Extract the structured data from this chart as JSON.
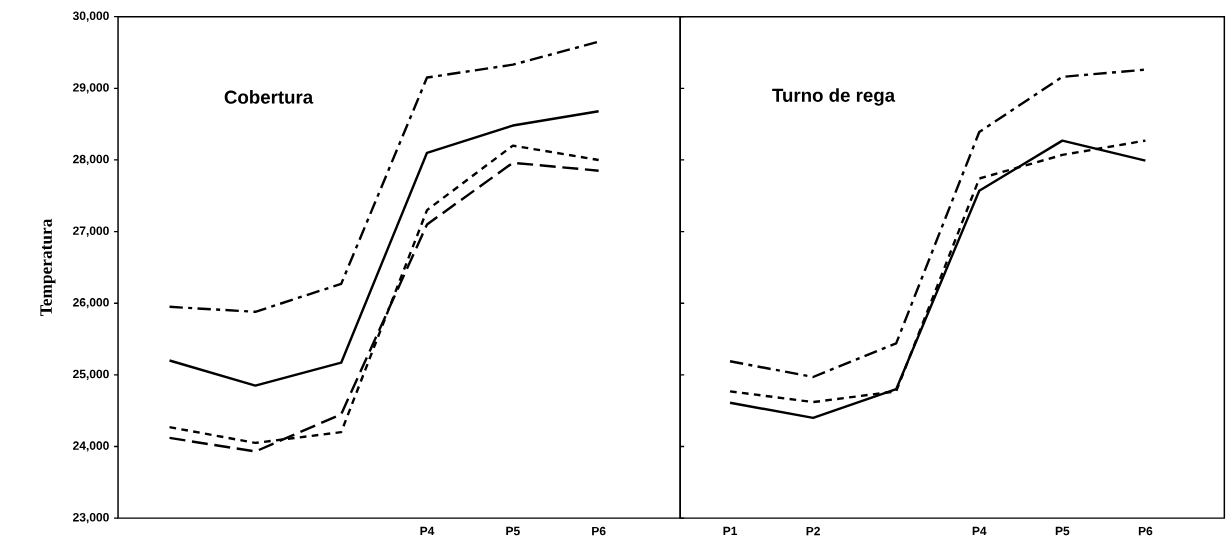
{
  "chart_data": [
    {
      "type": "line",
      "title": "Cobertura",
      "ylabel": "Temperatura",
      "categories": [
        null,
        null,
        null,
        "P4",
        "P5",
        "P6"
      ],
      "ylim": [
        23000,
        30000
      ],
      "yticks": [
        {
          "value": 23000,
          "label": "23,000"
        },
        {
          "value": 24000,
          "label": "24,000"
        },
        {
          "value": 25000,
          "label": "25,000"
        },
        {
          "value": 26000,
          "label": "26,000"
        },
        {
          "value": 27000,
          "label": "27,000"
        },
        {
          "value": 28000,
          "label": "28,000"
        },
        {
          "value": 29000,
          "label": "29,000"
        },
        {
          "value": 30000,
          "label": "30,000"
        }
      ],
      "grid": false,
      "marker": "none",
      "series": [
        {
          "color": "#000000",
          "line_style": "dashdot",
          "values": [
            25950,
            25880,
            26270,
            29150,
            29330,
            29650
          ]
        },
        {
          "color": "#000000",
          "line_style": "solid",
          "values": [
            25200,
            24850,
            25170,
            28100,
            28480,
            28680
          ]
        },
        {
          "color": "#000000",
          "line_style": "dotted",
          "values": [
            24270,
            24050,
            24200,
            27300,
            28200,
            28000
          ]
        },
        {
          "color": "#000000",
          "line_style": "dashed",
          "values": [
            24120,
            23930,
            24450,
            27100,
            27960,
            27850
          ]
        }
      ]
    },
    {
      "type": "line",
      "title": "Turno de rega",
      "categories": [
        "P1",
        "P2",
        null,
        "P4",
        "P5",
        "P6"
      ],
      "ylim": [
        23000,
        30000
      ],
      "tick_labels": "x",
      "grid": false,
      "marker": "none",
      "series": [
        {
          "color": "#000000",
          "line_style": "dashdot",
          "values": [
            25190,
            24970,
            25440,
            28390,
            29160,
            29260
          ]
        },
        {
          "color": "#000000",
          "line_style": "dotted",
          "values": [
            24770,
            24620,
            24770,
            27740,
            28070,
            28270
          ]
        },
        {
          "color": "#000000",
          "line_style": "solid",
          "values": [
            24610,
            24400,
            24800,
            27570,
            28270,
            27990
          ]
        }
      ]
    }
  ]
}
